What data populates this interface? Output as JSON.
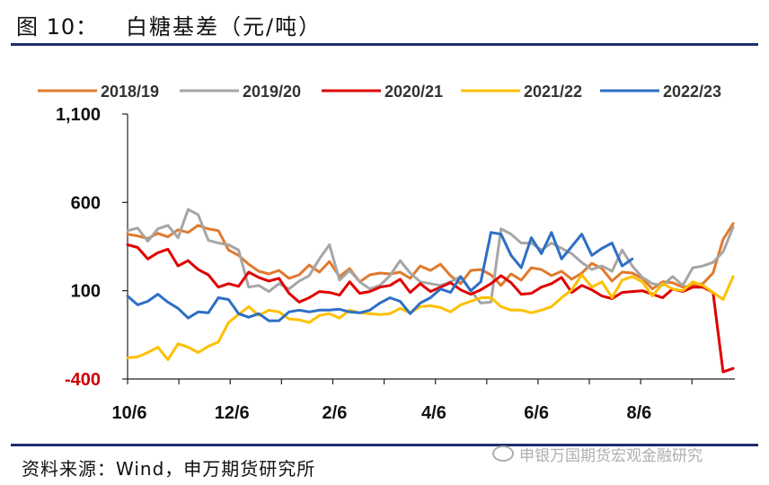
{
  "header": {
    "figure_number": "图 10：",
    "title": "白糖基差（元/吨）"
  },
  "footer": {
    "source": "资料来源：Wind，申万期货研究所",
    "watermark": "申银万国期货宏观金融研究"
  },
  "chart_data": {
    "type": "line",
    "title": "白糖基差（元/吨）",
    "xlabel": "",
    "ylabel": "",
    "ylim": [
      -400,
      1100
    ],
    "yticks": [
      {
        "value": 1100,
        "label": "1,100",
        "color": "#111111"
      },
      {
        "value": 600,
        "label": "600",
        "color": "#111111"
      },
      {
        "value": 100,
        "label": "100",
        "color": "#111111"
      },
      {
        "value": -400,
        "label": "-400",
        "color": "#cc0000"
      }
    ],
    "x_tick_labels": [
      "10/6",
      "12/6",
      "2/6",
      "4/6",
      "6/6",
      "8/6"
    ],
    "x_tick_positions": [
      0,
      61,
      122,
      181,
      242,
      303
    ],
    "x_range": [
      0,
      361
    ],
    "grid": false,
    "legend_position": "top",
    "series": [
      {
        "name": "2018/19",
        "color": "#e07a2e",
        "x": [
          0,
          6,
          12,
          18,
          24,
          30,
          36,
          42,
          48,
          54,
          60,
          66,
          72,
          78,
          84,
          90,
          96,
          102,
          108,
          114,
          120,
          126,
          132,
          138,
          144,
          150,
          156,
          162,
          168,
          174,
          180,
          186,
          192,
          198,
          204,
          210,
          216,
          222,
          228,
          234,
          240,
          246,
          252,
          258,
          264,
          270,
          276,
          282,
          288,
          294,
          300,
          306,
          312,
          318,
          324,
          330,
          336,
          342,
          348,
          354,
          360
        ],
        "y": [
          420,
          410,
          395,
          425,
          405,
          445,
          430,
          470,
          450,
          440,
          330,
          300,
          250,
          210,
          195,
          215,
          170,
          190,
          245,
          205,
          265,
          180,
          225,
          150,
          190,
          200,
          195,
          205,
          170,
          240,
          215,
          250,
          185,
          140,
          215,
          220,
          190,
          130,
          195,
          160,
          230,
          220,
          185,
          210,
          165,
          200,
          255,
          225,
          155,
          205,
          200,
          170,
          110,
          150,
          145,
          120,
          130,
          140,
          200,
          390,
          480
        ]
      },
      {
        "name": "2019/20",
        "color": "#a6a6a6",
        "x": [
          0,
          6,
          12,
          18,
          24,
          30,
          36,
          42,
          48,
          54,
          60,
          66,
          72,
          78,
          84,
          90,
          96,
          102,
          108,
          114,
          120,
          126,
          132,
          138,
          144,
          150,
          156,
          162,
          168,
          174,
          180,
          186,
          192,
          198,
          204,
          210,
          216,
          222,
          228,
          234,
          240,
          246,
          252,
          258,
          264,
          270,
          276,
          282,
          288,
          294,
          300,
          306,
          312,
          318,
          324,
          330,
          336,
          342,
          348,
          354,
          360
        ],
        "y": [
          440,
          455,
          380,
          450,
          470,
          400,
          560,
          530,
          385,
          370,
          360,
          330,
          120,
          130,
          95,
          140,
          110,
          155,
          185,
          280,
          360,
          160,
          215,
          150,
          110,
          130,
          185,
          270,
          200,
          150,
          140,
          130,
          150,
          180,
          100,
          30,
          35,
          450,
          420,
          370,
          370,
          330,
          370,
          340,
          310,
          260,
          220,
          240,
          210,
          330,
          240,
          175,
          140,
          130,
          180,
          130,
          230,
          240,
          260,
          320,
          460
        ]
      },
      {
        "name": "2020/21",
        "color": "#e00000",
        "x": [
          0,
          6,
          12,
          18,
          24,
          30,
          36,
          42,
          48,
          54,
          60,
          66,
          72,
          78,
          84,
          90,
          96,
          102,
          108,
          114,
          120,
          126,
          132,
          138,
          144,
          150,
          156,
          162,
          168,
          174,
          180,
          186,
          192,
          198,
          204,
          210,
          216,
          222,
          228,
          234,
          240,
          246,
          252,
          258,
          264,
          270,
          276,
          282,
          288,
          294,
          300,
          306,
          312,
          318,
          324,
          330,
          336,
          342,
          348,
          354,
          360
        ],
        "y": [
          360,
          345,
          280,
          315,
          335,
          240,
          270,
          220,
          190,
          120,
          140,
          125,
          205,
          175,
          155,
          170,
          85,
          35,
          60,
          95,
          90,
          75,
          150,
          85,
          95,
          120,
          130,
          165,
          90,
          140,
          95,
          120,
          145,
          105,
          80,
          105,
          140,
          185,
          145,
          80,
          85,
          120,
          140,
          175,
          90,
          130,
          105,
          70,
          55,
          90,
          95,
          100,
          80,
          60,
          110,
          95,
          120,
          120,
          90,
          -360,
          -340
        ]
      },
      {
        "name": "2021/22",
        "color": "#ffc000",
        "x": [
          0,
          6,
          12,
          18,
          24,
          30,
          36,
          42,
          48,
          54,
          60,
          66,
          72,
          78,
          84,
          90,
          96,
          102,
          108,
          114,
          120,
          126,
          132,
          138,
          144,
          150,
          156,
          162,
          168,
          174,
          180,
          186,
          192,
          198,
          204,
          210,
          216,
          222,
          228,
          234,
          240,
          246,
          252,
          258,
          264,
          270,
          276,
          282,
          288,
          294,
          300,
          306,
          312,
          318,
          324,
          330,
          336,
          342,
          348,
          354,
          360
        ],
        "y": [
          -280,
          -275,
          -250,
          -220,
          -290,
          -200,
          -220,
          -250,
          -215,
          -190,
          -80,
          -35,
          10,
          -40,
          -10,
          -20,
          -60,
          -65,
          -80,
          -40,
          -30,
          -55,
          -10,
          -25,
          -30,
          -35,
          -30,
          0,
          -25,
          10,
          15,
          5,
          -20,
          20,
          40,
          60,
          60,
          10,
          -10,
          -10,
          -25,
          -10,
          10,
          60,
          105,
          190,
          120,
          150,
          60,
          160,
          180,
          150,
          70,
          140,
          110,
          100,
          150,
          130,
          90,
          50,
          180
        ]
      },
      {
        "name": "2022/23",
        "color": "#2e6fc4",
        "x": [
          0,
          6,
          12,
          18,
          24,
          30,
          36,
          42,
          48,
          54,
          60,
          66,
          72,
          78,
          84,
          90,
          96,
          102,
          108,
          114,
          120,
          126,
          132,
          138,
          144,
          150,
          156,
          162,
          168,
          174,
          180,
          186,
          192,
          198,
          204,
          210,
          216,
          222,
          228,
          234,
          240,
          246,
          252,
          258,
          264,
          270,
          276,
          282,
          288,
          294,
          300
        ],
        "y": [
          70,
          20,
          40,
          80,
          35,
          0,
          -55,
          -20,
          -25,
          60,
          50,
          -30,
          -50,
          -30,
          -70,
          -70,
          -20,
          -10,
          -20,
          -10,
          -10,
          -5,
          -20,
          -25,
          -10,
          30,
          60,
          40,
          -30,
          30,
          60,
          110,
          90,
          180,
          100,
          150,
          430,
          420,
          300,
          230,
          400,
          310,
          430,
          280,
          350,
          420,
          300,
          340,
          370,
          240,
          280
        ]
      }
    ]
  }
}
